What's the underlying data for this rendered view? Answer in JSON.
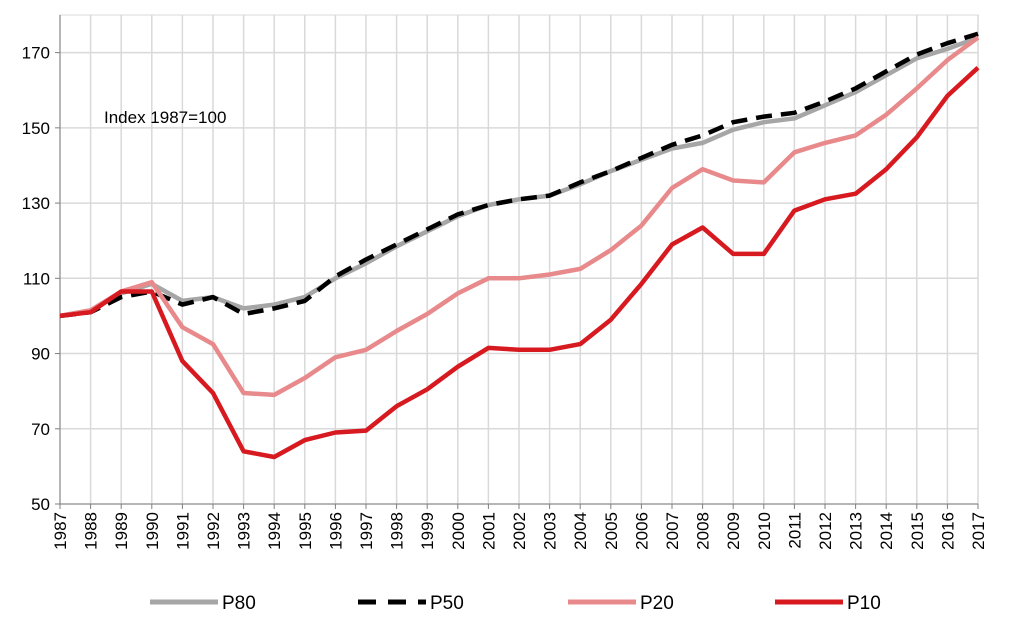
{
  "chart_data": {
    "type": "line",
    "title": "",
    "xlabel": "",
    "ylabel": "",
    "annotation": "Index 1987=100",
    "x": [
      1987,
      1988,
      1989,
      1990,
      1991,
      1992,
      1993,
      1994,
      1995,
      1996,
      1997,
      1998,
      1999,
      2000,
      2001,
      2002,
      2003,
      2004,
      2005,
      2006,
      2007,
      2008,
      2009,
      2010,
      2011,
      2012,
      2013,
      2014,
      2015,
      2016,
      2017
    ],
    "x_tick_labels": [
      "1987",
      "1988",
      "1989",
      "1990",
      "1991",
      "1992",
      "1993",
      "1994",
      "1995",
      "1996",
      "1997",
      "1998",
      "1999",
      "2000",
      "2001",
      "2002",
      "2003",
      "2004",
      "2005",
      "2006",
      "2007",
      "2008",
      "2009",
      "2010",
      "2011",
      "2012",
      "2013",
      "2014",
      "2015",
      "2016",
      "2017"
    ],
    "ylim": [
      50,
      180
    ],
    "y_ticks": [
      50,
      70,
      90,
      110,
      130,
      150,
      170
    ],
    "y_tick_labels": [
      "50",
      "70",
      "90",
      "110",
      "130",
      "150",
      "170"
    ],
    "grid": true,
    "legend_position": "bottom",
    "series": [
      {
        "name": "P80",
        "color": "#a6a6a6",
        "dash": "solid",
        "values": [
          100,
          101.5,
          106,
          108.5,
          104,
          105,
          102,
          103,
          105,
          110,
          114,
          118.5,
          122.5,
          126.5,
          129.5,
          131,
          132,
          135,
          138.5,
          141.5,
          144.5,
          146,
          149.5,
          151.5,
          152.5,
          156,
          159.5,
          164,
          168.5,
          171,
          174
        ]
      },
      {
        "name": "P50",
        "color": "#000000",
        "dash": "dashed",
        "values": [
          100,
          101,
          105,
          106.5,
          103,
          105,
          100.5,
          102,
          104,
          110.5,
          115,
          119,
          123,
          127,
          129.5,
          131,
          132,
          135.5,
          138.5,
          142,
          145.5,
          148,
          151.5,
          153,
          154,
          157,
          160.5,
          165,
          169.5,
          172.5,
          175
        ]
      },
      {
        "name": "P20",
        "color": "#e88a8c",
        "dash": "solid",
        "values": [
          100,
          101.5,
          106.5,
          109,
          97,
          92.5,
          79.5,
          79,
          83.5,
          89,
          91,
          96,
          100.5,
          106,
          110,
          110,
          111,
          112.5,
          117.5,
          124,
          134,
          139,
          136,
          135.5,
          143.5,
          146,
          148,
          153.5,
          160.5,
          168,
          174
        ]
      },
      {
        "name": "P10",
        "color": "#d71920",
        "dash": "solid",
        "values": [
          100,
          101,
          106.5,
          106.5,
          88,
          79.5,
          64,
          62.5,
          67,
          69,
          69.5,
          76,
          80.5,
          86.5,
          91.5,
          91,
          91,
          92.5,
          99,
          108.5,
          119,
          123.5,
          116.5,
          116.5,
          128,
          131,
          132.5,
          139,
          147.5,
          158.5,
          166
        ]
      }
    ]
  }
}
